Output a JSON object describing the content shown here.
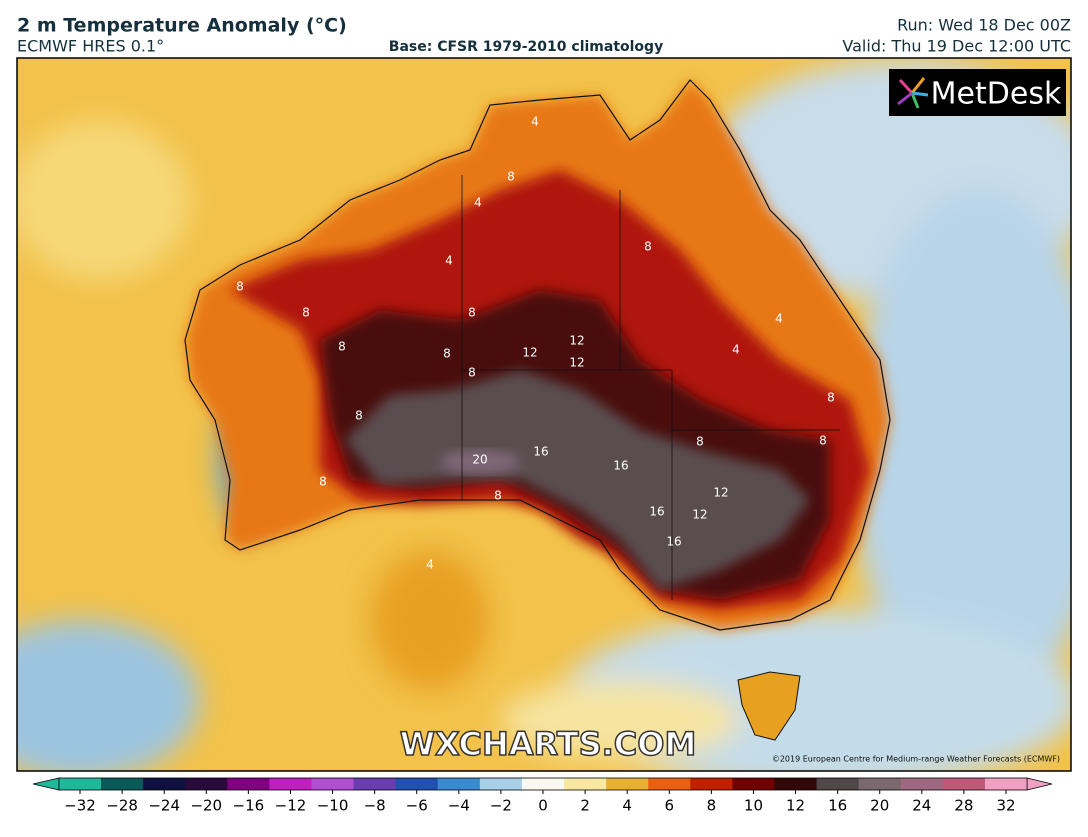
{
  "header": {
    "title": "2 m Temperature Anomaly (°C)",
    "model": "ECMWF HRES 0.1°",
    "base": "Base: CFSR 1979-2010 climatology",
    "run": "Run: Wed 18 Dec 00Z",
    "valid": "Valid: Thu 19 Dec 12:00 UTC"
  },
  "map": {
    "logo": "MetDesk",
    "watermark": "WXCHARTS.COM",
    "copyright": "©2019 European Centre for Medium-range Weather Forecasts (ECMWF)",
    "contour_labels": [
      4,
      8,
      4,
      4,
      8,
      8,
      8,
      8,
      8,
      8,
      12,
      12,
      12,
      8,
      4,
      4,
      8,
      8,
      8,
      8,
      8,
      16,
      20,
      16,
      16,
      16,
      12,
      12,
      8,
      4
    ]
  },
  "colorbar": {
    "ticks": [
      {
        "value": -32,
        "label": "−32"
      },
      {
        "value": -28,
        "label": "−28"
      },
      {
        "value": -24,
        "label": "−24"
      },
      {
        "value": -20,
        "label": "−20"
      },
      {
        "value": -16,
        "label": "−16"
      },
      {
        "value": -12,
        "label": "−12"
      },
      {
        "value": -10,
        "label": "−10"
      },
      {
        "value": -8,
        "label": "−8"
      },
      {
        "value": -6,
        "label": "−6"
      },
      {
        "value": -4,
        "label": "−4"
      },
      {
        "value": -2,
        "label": "−2"
      },
      0,
      2,
      4,
      6,
      8,
      10,
      12,
      16,
      20,
      24,
      28,
      32
    ],
    "colors": [
      "#1fb89a",
      "#0a5a5a",
      "#101040",
      "#2a0a3a",
      "#800080",
      "#c020c0",
      "#b050d0",
      "#6a3db0",
      "#2050b0",
      "#3a8ad0",
      "#a8d0e8",
      "#f8f8f0",
      "#f8e8a0",
      "#e8b030",
      "#e86010",
      "#c02000",
      "#700000",
      "#300808",
      "#504848",
      "#7a6a70",
      "#a06880",
      "#c05878",
      "#f0a0c0"
    ]
  }
}
